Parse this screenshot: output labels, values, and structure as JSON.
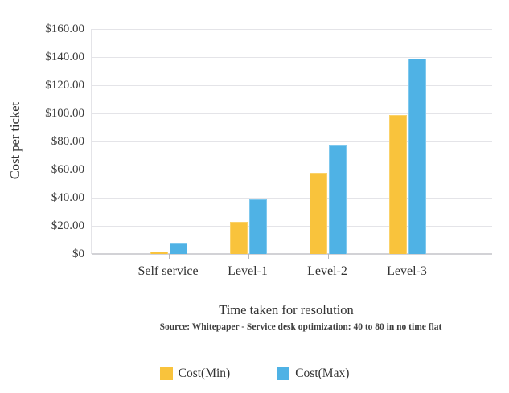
{
  "chart_data": {
    "type": "bar",
    "title": "",
    "categories": [
      "Self service",
      "Level-1",
      "Level-2",
      "Level-3"
    ],
    "series": [
      {
        "name": "Cost(Min)",
        "color": "#f9c33c",
        "border_color": "#fbd269",
        "values": [
          2,
          23,
          58,
          99
        ]
      },
      {
        "name": "Cost(Max)",
        "color": "#4fb2e5",
        "border_color": "#7ec8ee",
        "values": [
          8,
          39,
          77,
          139
        ]
      }
    ],
    "ylabel": "Cost per ticket",
    "xlabel": "Time taken for resolution",
    "source_note": "Source: Whitepaper - Service desk optimization: 40 to 80 in no time flat",
    "ylim": [
      0,
      160
    ],
    "ytick_step": 20,
    "ytick_labels": [
      "$0",
      "$20.00",
      "$40.00",
      "$60.00",
      "$80.00",
      "$100.00",
      "$120.00",
      "$140.00",
      "$160.00"
    ],
    "grid": true,
    "legend_position": "bottom",
    "colors": {
      "grid": "#e4e4e8",
      "axis": "#d2d2d6",
      "text": "#333333"
    }
  }
}
